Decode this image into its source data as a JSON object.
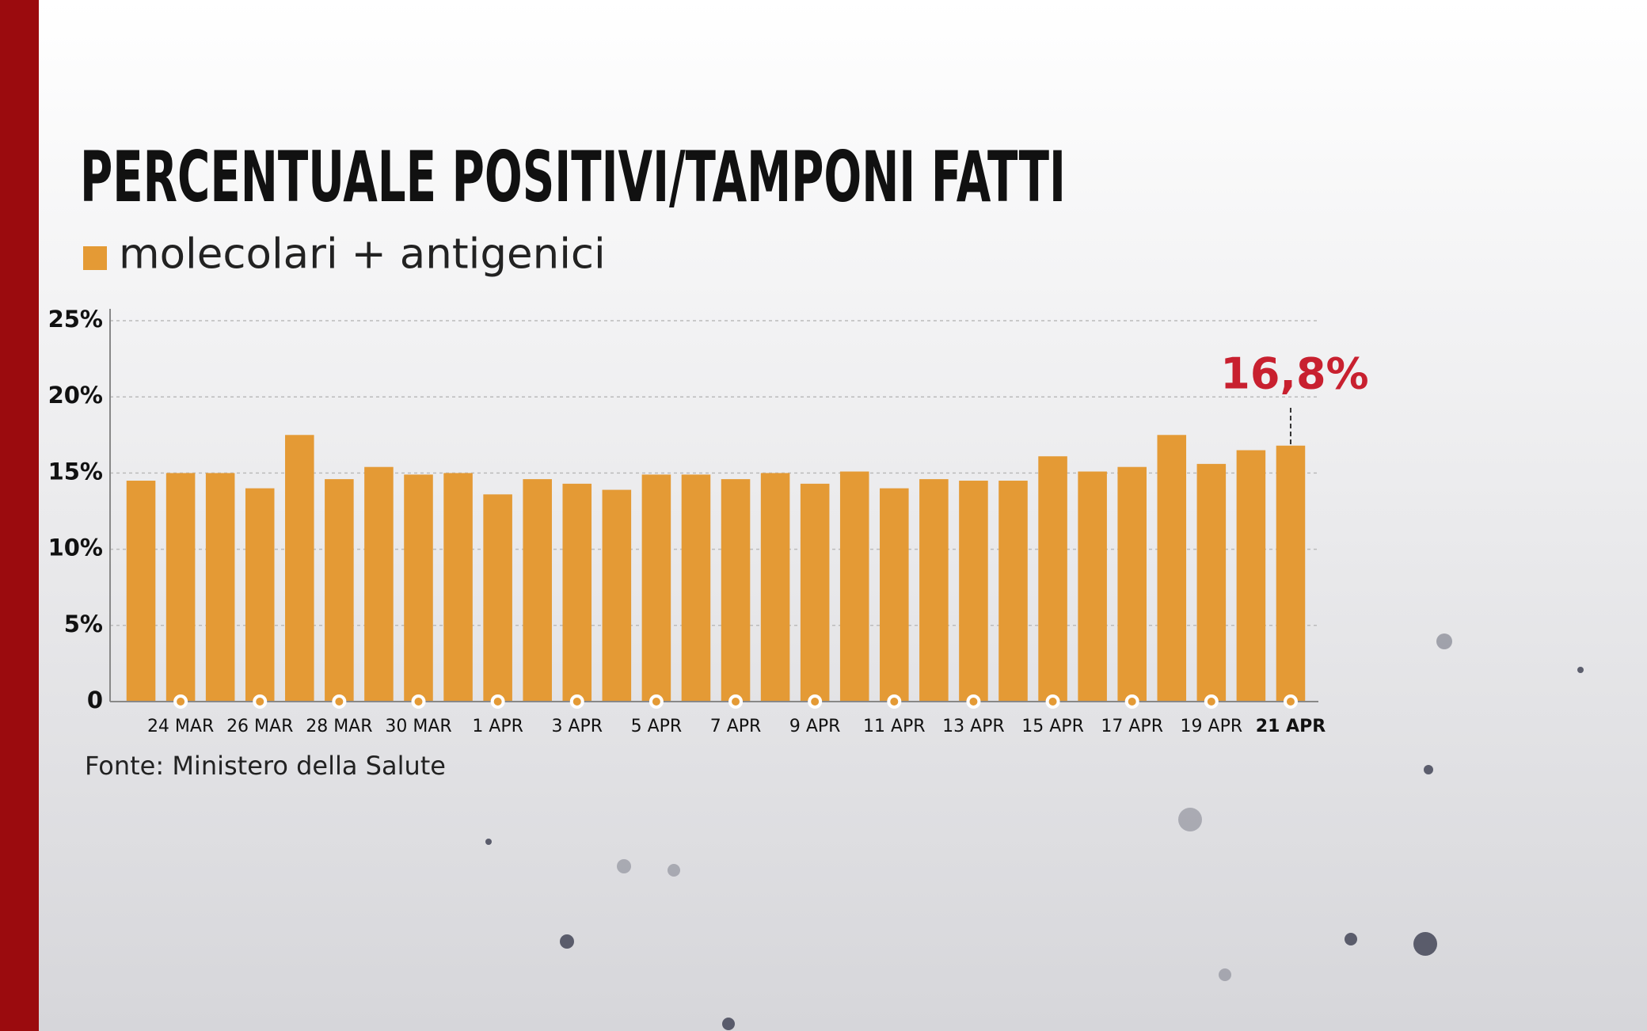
{
  "chart_data": {
    "type": "bar",
    "title": "PERCENTUALE POSITIVI/TAMPONI FATTI",
    "series": [
      {
        "name": "molecolari + antigenici",
        "color": "#e49a35",
        "values": [
          14.5,
          15.0,
          15.0,
          14.0,
          17.5,
          14.6,
          15.4,
          14.9,
          15.0,
          13.6,
          14.6,
          14.3,
          13.9,
          14.9,
          14.9,
          14.6,
          15.0,
          14.3,
          15.1,
          14.0,
          14.6,
          14.5,
          14.5,
          16.1,
          15.1,
          15.4,
          17.5,
          15.6,
          16.5,
          16.8
        ],
        "value_labels": [
          null,
          null,
          null,
          null,
          null,
          null,
          null,
          null,
          null,
          null,
          null,
          null,
          null,
          null,
          null,
          null,
          null,
          null,
          null,
          null,
          null,
          null,
          null,
          null,
          null,
          null,
          null,
          null,
          null,
          "16,8%"
        ]
      }
    ],
    "categories": [
      null,
      "24 MAR",
      null,
      "26 MAR",
      null,
      "28 MAR",
      null,
      "30 MAR",
      null,
      "1 APR",
      null,
      "3 APR",
      null,
      "5 APR",
      null,
      "7 APR",
      null,
      "9 APR",
      null,
      "11 APR",
      null,
      "13 APR",
      null,
      "15 APR",
      null,
      "17 APR",
      null,
      "19 APR",
      null,
      "21 APR"
    ],
    "ylim": [
      0,
      25
    ],
    "yticks": [
      0,
      {
        "value": 5,
        "label": "5%"
      },
      {
        "value": 10,
        "label": "10%"
      },
      {
        "value": 15,
        "label": "15%"
      },
      {
        "value": 20,
        "label": "20%"
      },
      {
        "value": 25,
        "label": "25%"
      }
    ],
    "grid": true,
    "source": "Fonte: Ministero della Salute"
  }
}
